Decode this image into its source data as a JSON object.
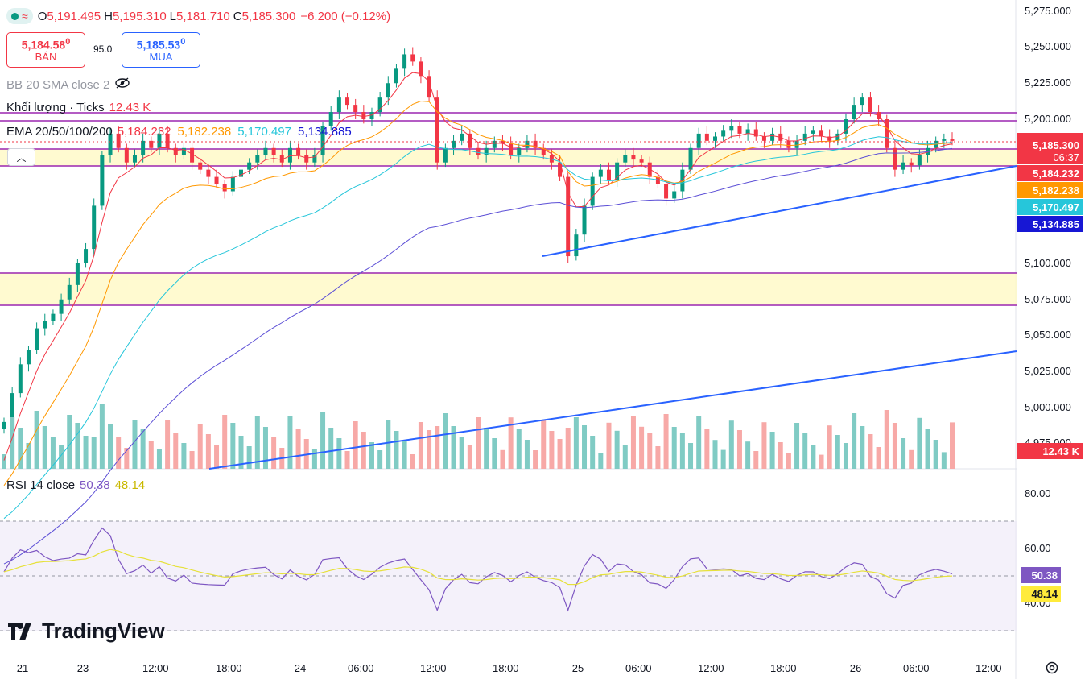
{
  "header": {
    "symbol_dot_color": "#089981",
    "ohlc": [
      {
        "label": "O",
        "value": "5,191.495"
      },
      {
        "label": "H",
        "value": "5,195.310"
      },
      {
        "label": "L",
        "value": "5,181.710"
      },
      {
        "label": "C",
        "value": "5,185.300"
      }
    ],
    "change": "−6.200 (−0.12%)"
  },
  "trade_panel": {
    "sell_price_main": "5,184.58",
    "sell_price_sup": "0",
    "sell_label": "BÁN",
    "spread": "95.0",
    "buy_price_main": "5,185.53",
    "buy_price_sup": "0",
    "buy_label": "MUA"
  },
  "indicators": {
    "bb": "BB 20 SMA close 2",
    "volume_label": "Khối lượng · Ticks",
    "volume_value": "12.43 K",
    "ema_label": "EMA 20/50/100/200",
    "ema_values": [
      "5,184.232",
      "5,182.238",
      "5,170.497",
      "5,134.885"
    ],
    "ema_colors": [
      "#f23645",
      "#ff9800",
      "#26c6da",
      "#1717d4"
    ],
    "rsi_label": "RSI 14 close",
    "rsi_value": "50.38",
    "rsi_ma": "48.14"
  },
  "price_axis": {
    "ticks": [
      "5,275.000",
      "5,250.000",
      "5,225.000",
      "5,200.000",
      "5,100.000",
      "5,075.000",
      "5,050.000",
      "5,025.000",
      "5,000.000",
      "4,975.000"
    ],
    "badges": [
      {
        "label": "5,185.300",
        "sub": "06:37",
        "color": "#f23645",
        "price": 5185.3
      },
      {
        "label": "5,184.232",
        "color": "#f23645",
        "price": 5184.232
      },
      {
        "label": "5,182.238",
        "color": "#ff9800",
        "price": 5182.238
      },
      {
        "label": "5,170.497",
        "color": "#26c6da",
        "price": 5170.497
      },
      {
        "label": "5,134.885",
        "color": "#1717d4",
        "price": 5134.885
      }
    ],
    "volume_badge": "12.43 K"
  },
  "rsi_axis": {
    "ticks": [
      "80.00",
      "60.00",
      "40.00"
    ],
    "badges": [
      {
        "label": "50.38",
        "color": "#7e57c2",
        "value": 50.38
      },
      {
        "label": "48.14",
        "color": "#ffeb3b",
        "value": 48.14
      }
    ]
  },
  "time_axis": [
    "21",
    "23",
    "12:00",
    "18:00",
    "24",
    "06:00",
    "12:00",
    "18:00",
    "25",
    "06:00",
    "12:00",
    "18:00",
    "26",
    "06:00",
    "12:00"
  ],
  "branding": "TradingView",
  "chart_data": {
    "type": "candlestick",
    "close_series": [
      4990,
      5010,
      5030,
      5040,
      5055,
      5060,
      5065,
      5075,
      5085,
      5100,
      5110,
      5140,
      5175,
      5190,
      5180,
      5170,
      5175,
      5185,
      5180,
      5190,
      5180,
      5175,
      5180,
      5170,
      5165,
      5160,
      5155,
      5150,
      5160,
      5165,
      5170,
      5175,
      5180,
      5175,
      5170,
      5180,
      5175,
      5170,
      5175,
      5195,
      5205,
      5215,
      5210,
      5205,
      5200,
      5205,
      5215,
      5225,
      5235,
      5245,
      5240,
      5230,
      5215,
      5170,
      5180,
      5185,
      5190,
      5180,
      5175,
      5180,
      5185,
      5183,
      5175,
      5180,
      5185,
      5180,
      5175,
      5170,
      5160,
      5105,
      5120,
      5140,
      5160,
      5165,
      5158,
      5170,
      5175,
      5172,
      5170,
      5160,
      5155,
      5145,
      5150,
      5165,
      5180,
      5190,
      5185,
      5188,
      5192,
      5195,
      5190,
      5193,
      5188,
      5185,
      5190,
      5185,
      5180,
      5185,
      5190,
      5192,
      5188,
      5185,
      5190,
      5200,
      5210,
      5215,
      5205,
      5200,
      5180,
      5165,
      5170,
      5168,
      5175,
      5180,
      5185,
      5186,
      5185
    ]
  }
}
